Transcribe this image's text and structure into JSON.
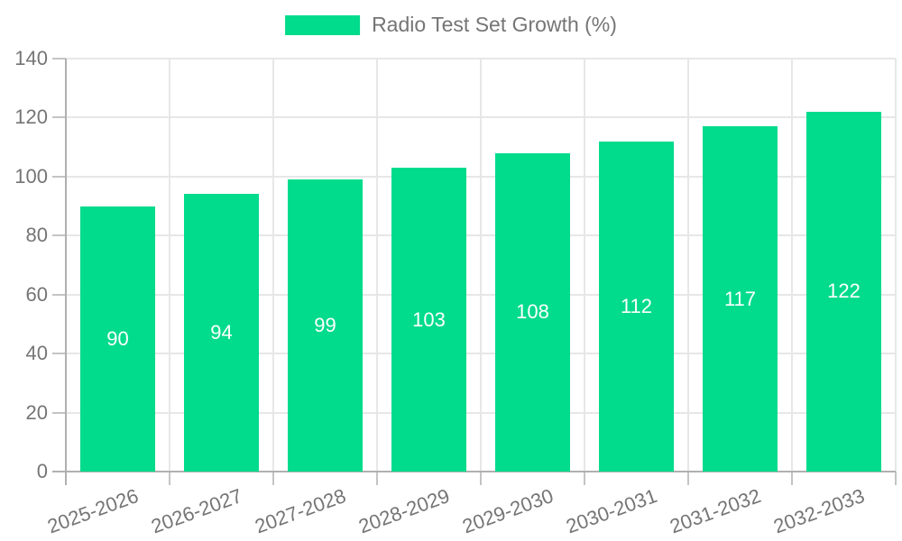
{
  "chart_data": {
    "type": "bar",
    "title": "Radio Test Set Growth (%)",
    "legend_label": "Radio Test Set Growth (%)",
    "legend_position": "top",
    "categories": [
      "2025-2026",
      "2026-2027",
      "2027-2028",
      "2028-2029",
      "2029-2030",
      "2030-2031",
      "2031-2032",
      "2032-2033"
    ],
    "values": [
      90,
      94,
      99,
      103,
      108,
      112,
      117,
      122
    ],
    "bar_value_labels": [
      "90",
      "94",
      "99",
      "103",
      "108",
      "112",
      "117",
      "122"
    ],
    "xlabel": "",
    "ylabel": "",
    "ylim": [
      0,
      140
    ],
    "yticks": [
      0,
      20,
      40,
      60,
      80,
      100,
      120,
      140
    ],
    "grid": true,
    "colors": {
      "bar": "#00db8c",
      "bar_label": "#ffffff",
      "axis_text": "#757575",
      "grid_line": "#e7e7e7",
      "axis_line": "#b0b0b0",
      "tick_line": "#c4c4c4"
    }
  }
}
